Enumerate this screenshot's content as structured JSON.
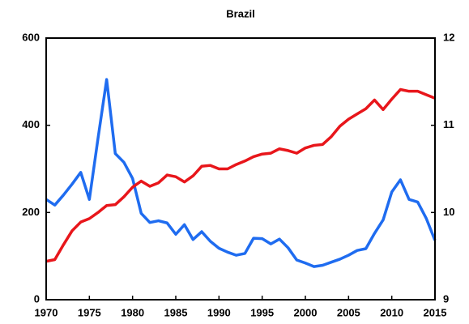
{
  "chart_data": {
    "type": "line",
    "title": "Brazil",
    "x": [
      1970,
      1971,
      1972,
      1973,
      1974,
      1975,
      1976,
      1977,
      1978,
      1979,
      1980,
      1981,
      1982,
      1983,
      1984,
      1985,
      1986,
      1987,
      1988,
      1989,
      1990,
      1991,
      1992,
      1993,
      1994,
      1995,
      1996,
      1997,
      1998,
      1999,
      2000,
      2001,
      2002,
      2003,
      2004,
      2005,
      2006,
      2007,
      2008,
      2009,
      2010,
      2011,
      2012,
      2013,
      2014,
      2015
    ],
    "xlim": [
      1970,
      2015
    ],
    "xticks": [
      1970,
      1975,
      1980,
      1985,
      1990,
      1995,
      2000,
      2005,
      2010,
      2015
    ],
    "ylim": [
      0,
      600
    ],
    "yticks": [
      0,
      200,
      400,
      600
    ],
    "y2lim": [
      9,
      12
    ],
    "y2ticks": [
      9,
      10,
      11,
      12
    ],
    "series": [
      {
        "color": "#1f6cf0",
        "values": [
          230,
          217,
          240,
          265,
          292,
          230,
          370,
          505,
          335,
          315,
          278,
          198,
          177,
          181,
          176,
          150,
          172,
          138,
          156,
          134,
          118,
          109,
          102,
          106,
          141,
          140,
          128,
          139,
          119,
          91,
          84,
          76,
          79,
          86,
          93,
          102,
          113,
          117,
          152,
          183,
          247,
          275,
          230,
          224,
          186,
          136
        ]
      },
      {
        "color": "#e8161b",
        "axis": "y2",
        "values": [
          9.44,
          9.46,
          9.63,
          9.79,
          9.89,
          9.93,
          10.0,
          10.08,
          10.09,
          10.18,
          10.29,
          10.36,
          10.3,
          10.34,
          10.43,
          10.41,
          10.35,
          10.42,
          10.53,
          10.54,
          10.5,
          10.5,
          10.55,
          10.59,
          10.64,
          10.67,
          10.68,
          10.73,
          10.71,
          10.68,
          10.74,
          10.77,
          10.78,
          10.87,
          10.99,
          11.07,
          11.13,
          11.19,
          11.29,
          11.18,
          11.3,
          11.41,
          11.39,
          11.39,
          11.35,
          11.31
        ]
      }
    ]
  }
}
